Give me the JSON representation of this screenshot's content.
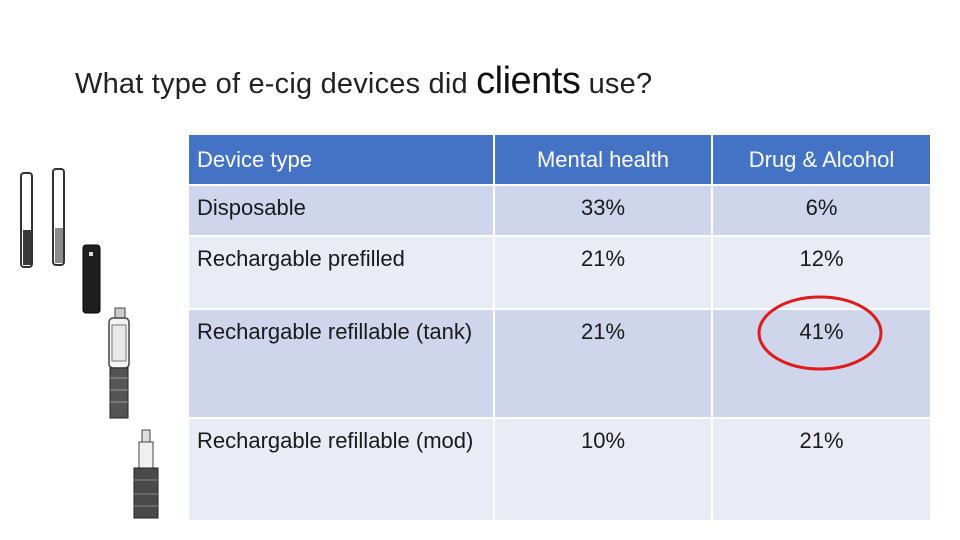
{
  "slide": {
    "title_prefix": "What type of e-cig devices did ",
    "title_emphasis": "clients",
    "title_suffix": " use?"
  },
  "table": {
    "headers": [
      "Device type",
      "Mental health",
      "Drug & Alcohol"
    ],
    "rows": [
      {
        "device": "Disposable",
        "mental_health": "33%",
        "drug_alcohol": "6%"
      },
      {
        "device": "Rechargable prefilled",
        "mental_health": "21%",
        "drug_alcohol": "12%"
      },
      {
        "device": "Rechargable refillable (tank)",
        "mental_health": "21%",
        "drug_alcohol": "41%"
      },
      {
        "device": "Rechargable refillable (mod)",
        "mental_health": "10%",
        "drug_alcohol": "21%"
      }
    ],
    "colors": {
      "header_bg": "#4472c4",
      "row_odd_bg": "#cfd5ea",
      "row_even_bg": "#e9ebf5",
      "highlight_circle": "#e01b1b"
    }
  },
  "illustrations": [
    "disposable-ecig-icon",
    "pod-device-icon",
    "tank-device-icon",
    "mod-device-icon"
  ]
}
